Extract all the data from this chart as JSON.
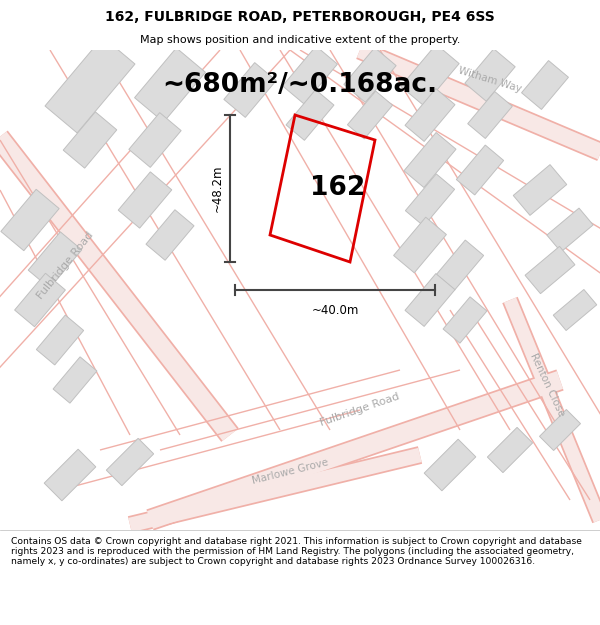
{
  "title": "162, FULBRIDGE ROAD, PETERBOROUGH, PE4 6SS",
  "subtitle": "Map shows position and indicative extent of the property.",
  "footer": "Contains OS data © Crown copyright and database right 2021. This information is subject to Crown copyright and database rights 2023 and is reproduced with the permission of HM Land Registry. The polygons (including the associated geometry, namely x, y co-ordinates) are subject to Crown copyright and database rights 2023 Ordnance Survey 100026316.",
  "area_text": "~680m²/~0.168ac.",
  "label_162": "162",
  "dim_width": "~40.0m",
  "dim_height": "~48.2m",
  "map_bg": "#ffffff",
  "road_line_color": "#f0b0a8",
  "road_fill_color": "#f8e8e6",
  "building_face_color": "#dcdcdc",
  "building_edge_color": "#c0c0c0",
  "boundary_color": "#dd0000",
  "dim_color": "#444444",
  "road_label_color": "#aaaaaa",
  "title_color": "#000000",
  "footer_color": "#000000"
}
